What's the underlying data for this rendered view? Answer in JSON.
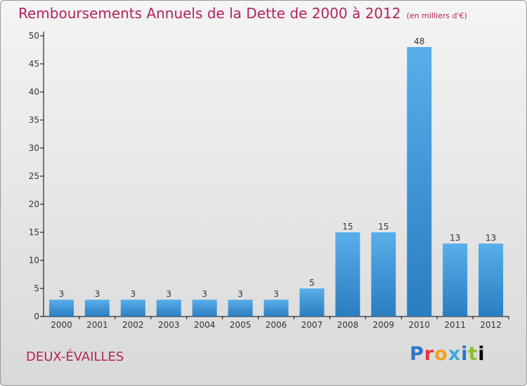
{
  "title": "Remboursements Annuels de la Dette de 2000 à 2012",
  "unit_note": "(en milliers d'€)",
  "commune": "DEUX-ÉVAILLES",
  "logo": "Proxiti",
  "colors": {
    "title": "#b2235a",
    "bar_light": "#5aaeea",
    "bar_dark": "#2a7dc0",
    "axis": "#000000"
  },
  "chart_data": {
    "type": "bar",
    "title": "Remboursements Annuels de la Dette de 2000 à 2012",
    "xlabel": "",
    "ylabel": "",
    "categories": [
      "2000",
      "2001",
      "2002",
      "2003",
      "2004",
      "2005",
      "2006",
      "2007",
      "2008",
      "2009",
      "2010",
      "2011",
      "2012"
    ],
    "values": [
      3,
      3,
      3,
      3,
      3,
      3,
      3,
      5,
      15,
      15,
      48,
      13,
      13
    ],
    "data_labels": [
      "3",
      "3",
      "3",
      "3",
      "3",
      "3",
      "3",
      "5",
      "15",
      "15",
      "48",
      "13",
      "13"
    ],
    "ylim": [
      0,
      50
    ],
    "yticks": [
      0,
      5,
      10,
      15,
      20,
      25,
      30,
      35,
      40,
      45,
      50
    ],
    "grid": false,
    "legend": "none"
  }
}
